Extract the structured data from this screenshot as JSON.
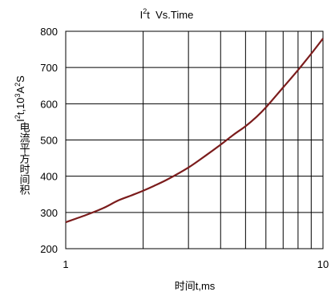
{
  "chart_data": {
    "type": "line",
    "title": {
      "prefix": "I",
      "sup": "2",
      "rest": "t  Vs.Time"
    },
    "xlabel": "时间t,ms",
    "ylabel": {
      "cn": "电流平方时间积",
      "a": "I",
      "s1": "2",
      "b": "t,10",
      "s2": "3",
      "c": "A",
      "s3": "2",
      "d": "S"
    },
    "x_scale": "log",
    "xlim": [
      1,
      10
    ],
    "ylim": [
      200,
      800
    ],
    "x_ticks": [
      {
        "value": 1,
        "label": "1"
      },
      {
        "value": 10,
        "label": "10"
      }
    ],
    "y_ticks": [
      {
        "value": 200,
        "label": "200"
      },
      {
        "value": 300,
        "label": "300"
      },
      {
        "value": 400,
        "label": "400"
      },
      {
        "value": 500,
        "label": "500"
      },
      {
        "value": 600,
        "label": "600"
      },
      {
        "value": 700,
        "label": "700"
      },
      {
        "value": 800,
        "label": "800"
      }
    ],
    "grid": true,
    "series": [
      {
        "color": "#7b1c1c",
        "points": [
          {
            "x": 1.0,
            "y": 273
          },
          {
            "x": 1.2,
            "y": 293
          },
          {
            "x": 1.4,
            "y": 312
          },
          {
            "x": 1.6,
            "y": 333
          },
          {
            "x": 1.8,
            "y": 347
          },
          {
            "x": 2.0,
            "y": 360
          },
          {
            "x": 2.2,
            "y": 373
          },
          {
            "x": 2.5,
            "y": 392
          },
          {
            "x": 3.0,
            "y": 424
          },
          {
            "x": 3.5,
            "y": 457
          },
          {
            "x": 4.0,
            "y": 487
          },
          {
            "x": 4.5,
            "y": 515
          },
          {
            "x": 5.0,
            "y": 538
          },
          {
            "x": 5.5,
            "y": 563
          },
          {
            "x": 6.0,
            "y": 590
          },
          {
            "x": 7.0,
            "y": 645
          },
          {
            "x": 8.0,
            "y": 693
          },
          {
            "x": 9.0,
            "y": 738
          },
          {
            "x": 10.0,
            "y": 780
          }
        ]
      }
    ]
  }
}
